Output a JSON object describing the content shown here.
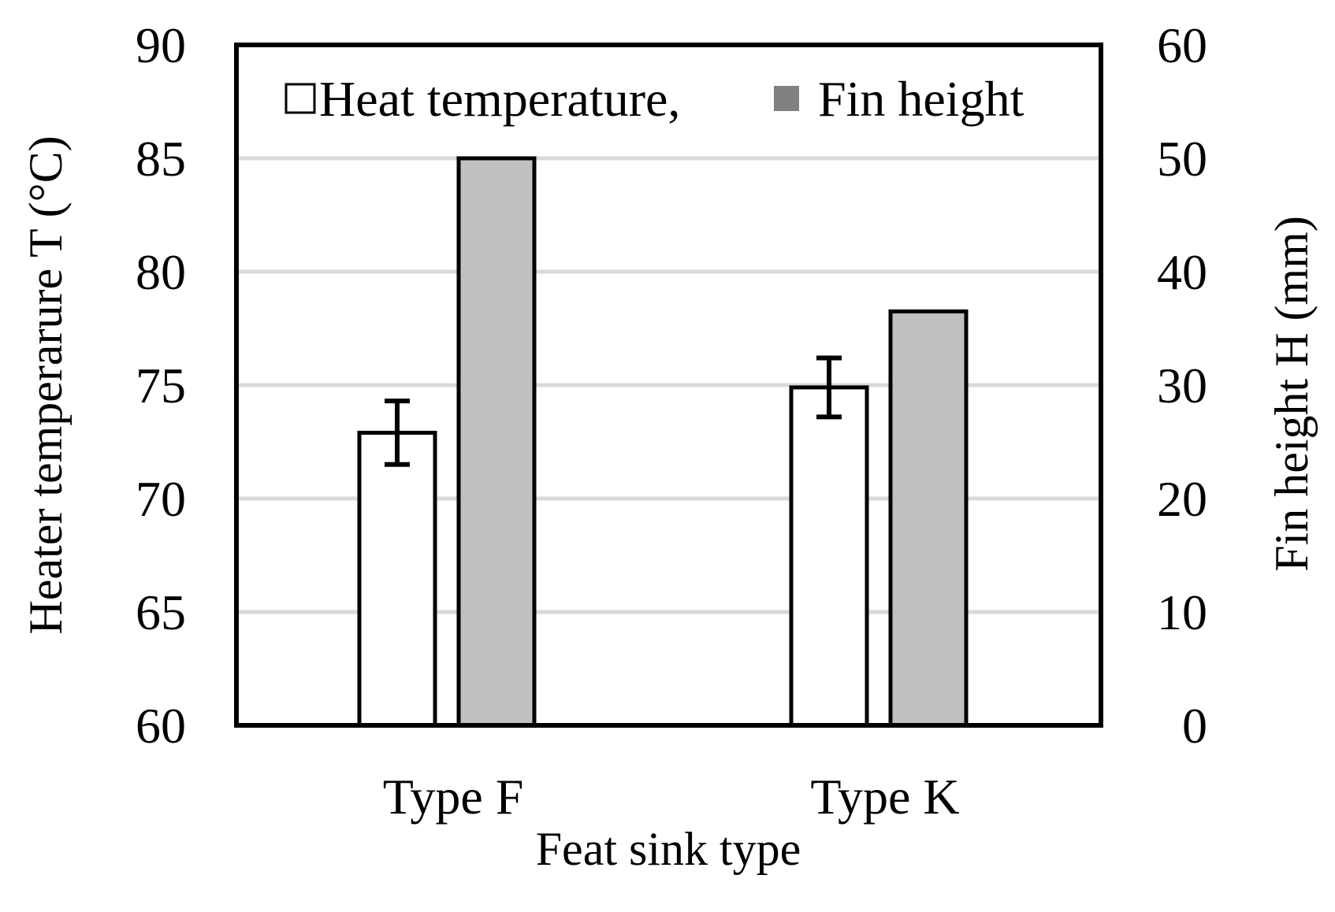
{
  "chart_data": {
    "type": "bar",
    "categories": [
      "Type F",
      "Type K"
    ],
    "xlabel": "Feat sink type",
    "ylabel": "Heater temperarure T (°C)",
    "ylabel_right": "Fin height H (mm)",
    "ylim": [
      60,
      90
    ],
    "ylim_right": [
      0,
      60
    ],
    "yticks": [
      "60",
      "65",
      "70",
      "75",
      "80",
      "85",
      "90"
    ],
    "yticks_right": [
      "0",
      "10",
      "20",
      "30",
      "40",
      "50",
      "60"
    ],
    "grid": true,
    "legend": {
      "placement": "top",
      "items": [
        "Heat temperature,",
        "Fin height"
      ]
    },
    "series": [
      {
        "name": "Heat temperature,",
        "axis": "left",
        "color": "#ffffff",
        "values": [
          72.9,
          74.9
        ],
        "error": [
          1.4,
          1.3
        ]
      },
      {
        "name": "Fin height",
        "axis": "right",
        "color": "#c0c0c0",
        "values": [
          50,
          36.5
        ]
      }
    ]
  }
}
